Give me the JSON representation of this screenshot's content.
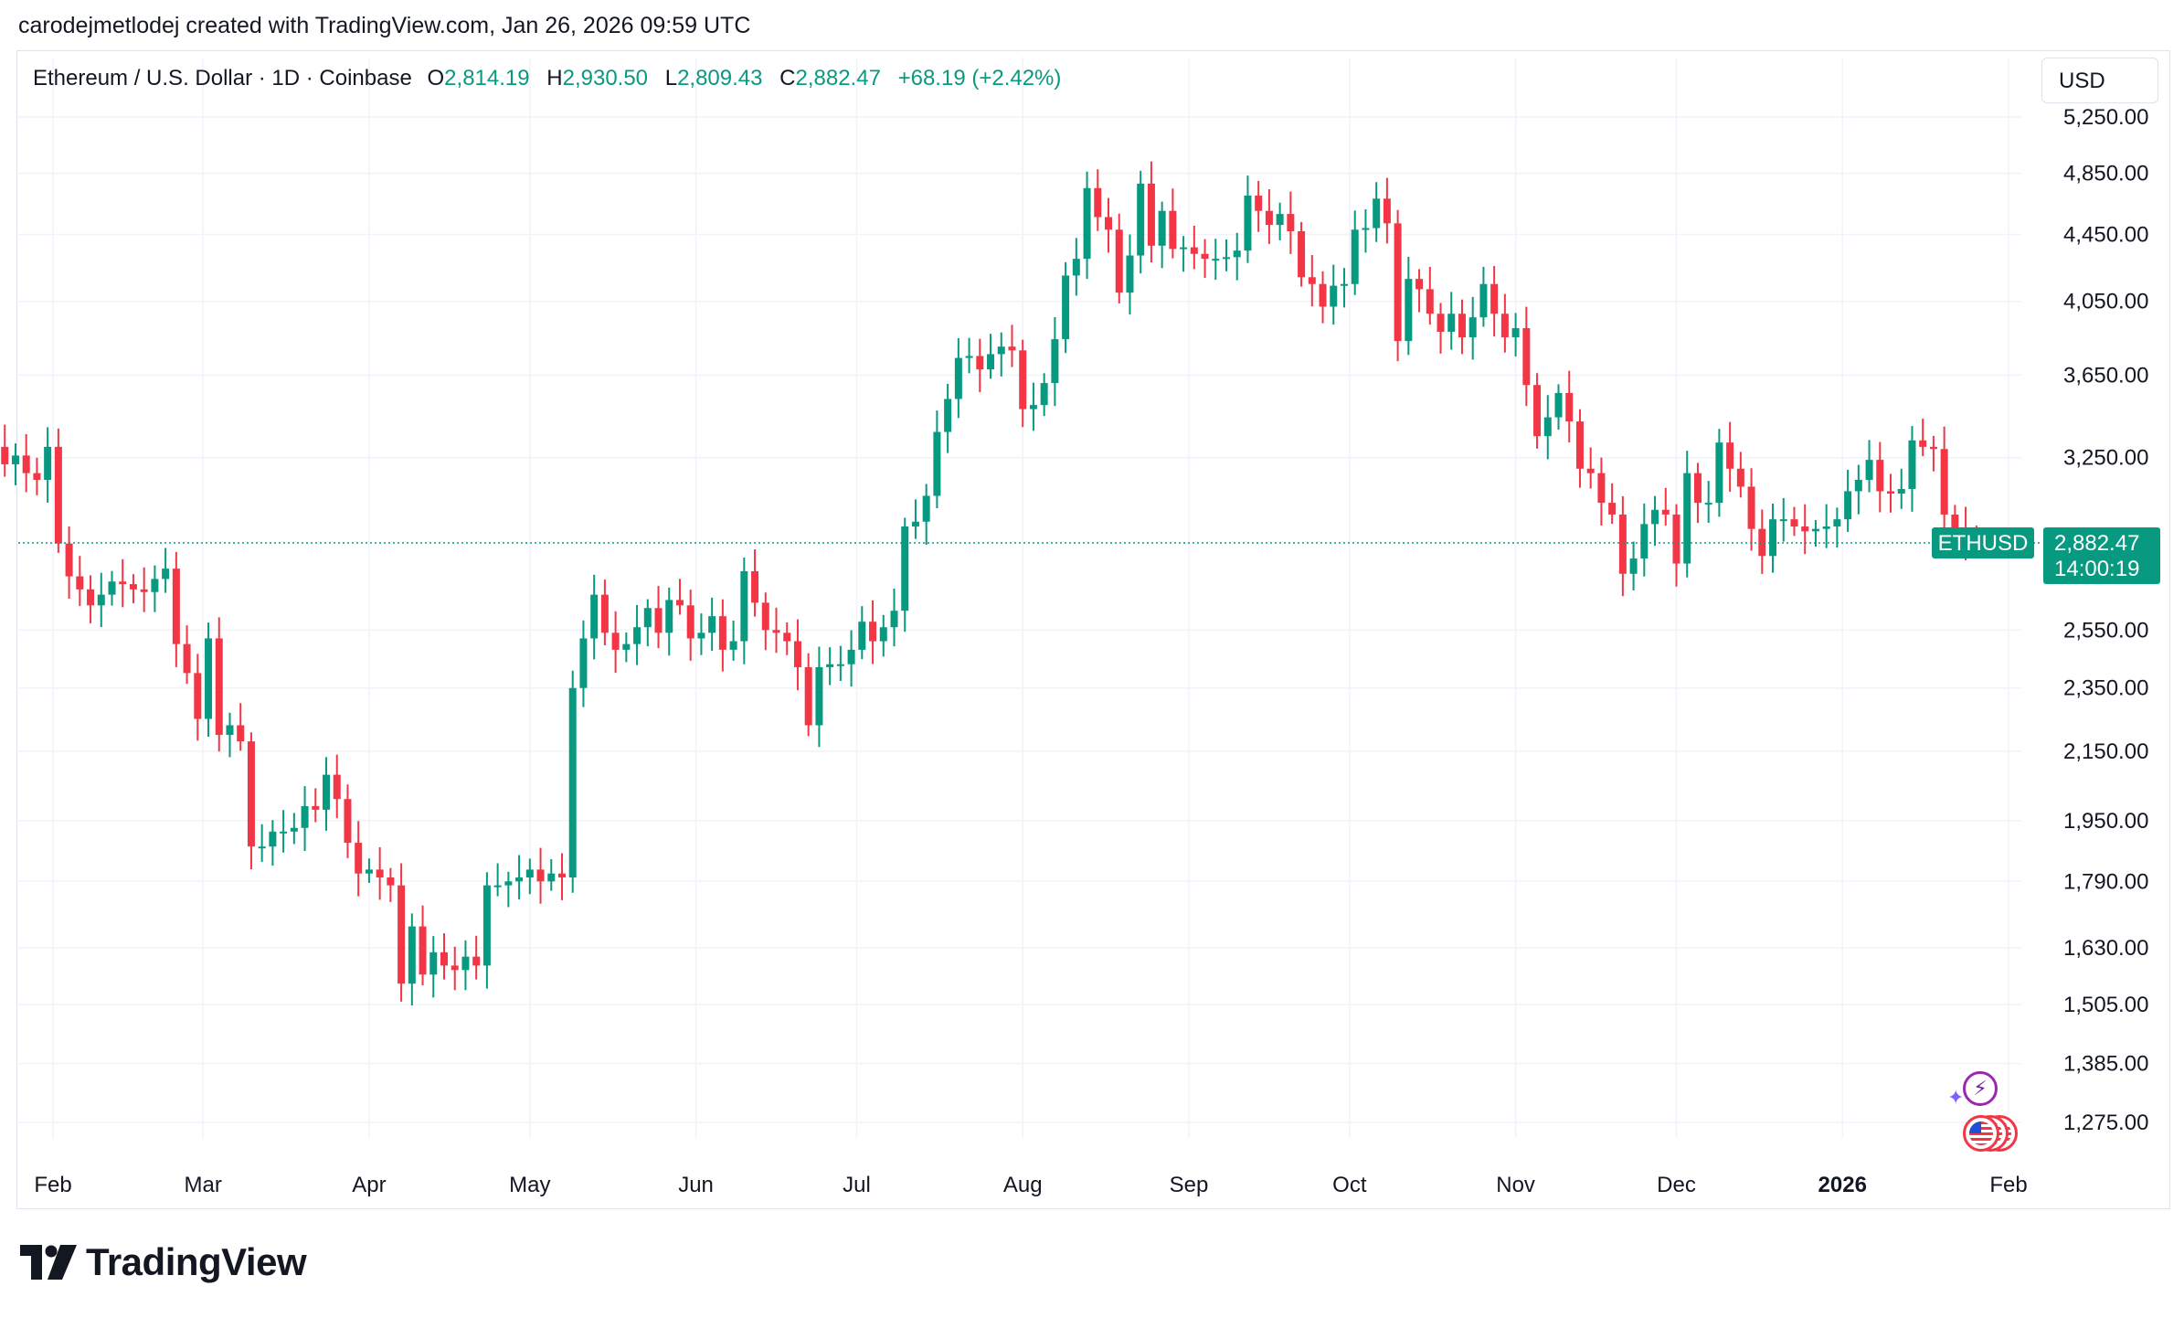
{
  "attribution": "carodejmetlodej created with TradingView.com, Jan 26, 2026 09:59 UTC",
  "legend": {
    "symbol": "Ethereum / U.S. Dollar · 1D · Coinbase",
    "open_label": "O",
    "open": "2,814.19",
    "high_label": "H",
    "high": "2,930.50",
    "low_label": "L",
    "low": "2,809.43",
    "close_label": "C",
    "close": "2,882.47",
    "change": "+68.19 (+2.42%)"
  },
  "currency": "USD",
  "price_tag": {
    "ticker": "ETHUSD",
    "price": "2,882.47",
    "countdown": "14:00:19"
  },
  "brand": "TradingView",
  "icons": [
    "tradingview-logo-icon",
    "bolt-icon",
    "us-flag-icon"
  ],
  "colors": {
    "up": "#089981",
    "down": "#f23645",
    "grid": "#f0f3fa",
    "text": "#131722"
  },
  "chart_data": {
    "type": "candlestick",
    "symbol": "ETHUSD",
    "interval": "1D",
    "y_scale": "log",
    "y_ticks": [
      1275,
      1385,
      1505,
      1630,
      1790,
      1950,
      2150,
      2350,
      2550,
      3250,
      3650,
      4050,
      4450,
      4850,
      5250
    ],
    "y_tick_labels": [
      "1,275.00",
      "1,385.00",
      "1,505.00",
      "1,630.00",
      "1,790.00",
      "1,950.00",
      "2,150.00",
      "2,350.00",
      "2,550.00",
      "3,250.00",
      "3,650.00",
      "4,050.00",
      "4,450.00",
      "4,850.00",
      "5,250.00"
    ],
    "x_tick_labels": [
      "Feb",
      "Mar",
      "Apr",
      "May",
      "Jun",
      "Jul",
      "Aug",
      "Sep",
      "Oct",
      "Nov",
      "Dec",
      "2026",
      "Feb"
    ],
    "x_tick_dates": [
      "2025-02-01",
      "2025-03-01",
      "2025-04-01",
      "2025-05-01",
      "2025-06-01",
      "2025-07-01",
      "2025-08-01",
      "2025-09-01",
      "2025-10-01",
      "2025-11-01",
      "2025-12-01",
      "2026-01-01",
      "2026-02-01"
    ],
    "last_price": 2882.47,
    "grid": true,
    "candles_approx_close": [
      [
        "2025-01-21",
        3300
      ],
      [
        "2025-01-23",
        3220
      ],
      [
        "2025-01-25",
        3260
      ],
      [
        "2025-01-27",
        3180
      ],
      [
        "2025-01-29",
        3150
      ],
      [
        "2025-01-31",
        3300
      ],
      [
        "2025-02-02",
        2880
      ],
      [
        "2025-02-04",
        2750
      ],
      [
        "2025-02-06",
        2700
      ],
      [
        "2025-02-08",
        2640
      ],
      [
        "2025-02-10",
        2680
      ],
      [
        "2025-02-12",
        2730
      ],
      [
        "2025-02-14",
        2720
      ],
      [
        "2025-02-16",
        2700
      ],
      [
        "2025-02-18",
        2690
      ],
      [
        "2025-02-20",
        2740
      ],
      [
        "2025-02-22",
        2780
      ],
      [
        "2025-02-24",
        2500
      ],
      [
        "2025-02-26",
        2400
      ],
      [
        "2025-02-28",
        2250
      ],
      [
        "2025-03-02",
        2520
      ],
      [
        "2025-03-04",
        2200
      ],
      [
        "2025-03-06",
        2230
      ],
      [
        "2025-03-08",
        2180
      ],
      [
        "2025-03-10",
        1880
      ],
      [
        "2025-03-12",
        1880
      ],
      [
        "2025-03-14",
        1920
      ],
      [
        "2025-03-16",
        1920
      ],
      [
        "2025-03-18",
        1930
      ],
      [
        "2025-03-20",
        1990
      ],
      [
        "2025-03-22",
        1980
      ],
      [
        "2025-03-24",
        2080
      ],
      [
        "2025-03-26",
        2010
      ],
      [
        "2025-03-28",
        1890
      ],
      [
        "2025-03-30",
        1810
      ],
      [
        "2025-04-01",
        1820
      ],
      [
        "2025-04-03",
        1800
      ],
      [
        "2025-04-05",
        1780
      ],
      [
        "2025-04-07",
        1550
      ],
      [
        "2025-04-09",
        1680
      ],
      [
        "2025-04-11",
        1570
      ],
      [
        "2025-04-13",
        1620
      ],
      [
        "2025-04-15",
        1590
      ],
      [
        "2025-04-17",
        1580
      ],
      [
        "2025-04-19",
        1610
      ],
      [
        "2025-04-21",
        1590
      ],
      [
        "2025-04-23",
        1780
      ],
      [
        "2025-04-25",
        1780
      ],
      [
        "2025-04-27",
        1790
      ],
      [
        "2025-04-29",
        1800
      ],
      [
        "2025-05-01",
        1820
      ],
      [
        "2025-05-03",
        1790
      ],
      [
        "2025-05-05",
        1810
      ],
      [
        "2025-05-07",
        1800
      ],
      [
        "2025-05-09",
        2350
      ],
      [
        "2025-05-11",
        2520
      ],
      [
        "2025-05-13",
        2680
      ],
      [
        "2025-05-15",
        2540
      ],
      [
        "2025-05-17",
        2480
      ],
      [
        "2025-05-19",
        2500
      ],
      [
        "2025-05-21",
        2560
      ],
      [
        "2025-05-23",
        2630
      ],
      [
        "2025-05-25",
        2540
      ],
      [
        "2025-05-27",
        2660
      ],
      [
        "2025-05-29",
        2640
      ],
      [
        "2025-05-31",
        2520
      ],
      [
        "2025-06-02",
        2540
      ],
      [
        "2025-06-04",
        2600
      ],
      [
        "2025-06-06",
        2480
      ],
      [
        "2025-06-08",
        2510
      ],
      [
        "2025-06-10",
        2770
      ],
      [
        "2025-06-12",
        2650
      ],
      [
        "2025-06-14",
        2550
      ],
      [
        "2025-06-16",
        2540
      ],
      [
        "2025-06-18",
        2510
      ],
      [
        "2025-06-20",
        2420
      ],
      [
        "2025-06-22",
        2230
      ],
      [
        "2025-06-24",
        2420
      ],
      [
        "2025-06-26",
        2430
      ],
      [
        "2025-06-28",
        2430
      ],
      [
        "2025-06-30",
        2480
      ],
      [
        "2025-07-02",
        2580
      ],
      [
        "2025-07-04",
        2510
      ],
      [
        "2025-07-06",
        2560
      ],
      [
        "2025-07-08",
        2620
      ],
      [
        "2025-07-10",
        2950
      ],
      [
        "2025-07-12",
        2970
      ],
      [
        "2025-07-14",
        3080
      ],
      [
        "2025-07-16",
        3370
      ],
      [
        "2025-07-18",
        3530
      ],
      [
        "2025-07-20",
        3740
      ],
      [
        "2025-07-22",
        3750
      ],
      [
        "2025-07-24",
        3680
      ],
      [
        "2025-07-26",
        3760
      ],
      [
        "2025-07-28",
        3800
      ],
      [
        "2025-07-30",
        3780
      ],
      [
        "2025-08-01",
        3480
      ],
      [
        "2025-08-03",
        3500
      ],
      [
        "2025-08-05",
        3610
      ],
      [
        "2025-08-07",
        3840
      ],
      [
        "2025-08-09",
        4200
      ],
      [
        "2025-08-11",
        4300
      ],
      [
        "2025-08-13",
        4750
      ],
      [
        "2025-08-15",
        4560
      ],
      [
        "2025-08-17",
        4480
      ],
      [
        "2025-08-19",
        4100
      ],
      [
        "2025-08-21",
        4320
      ],
      [
        "2025-08-23",
        4780
      ],
      [
        "2025-08-25",
        4380
      ],
      [
        "2025-08-27",
        4600
      ],
      [
        "2025-08-29",
        4360
      ],
      [
        "2025-08-31",
        4370
      ],
      [
        "2025-09-02",
        4330
      ],
      [
        "2025-09-04",
        4300
      ],
      [
        "2025-09-06",
        4300
      ],
      [
        "2025-09-08",
        4310
      ],
      [
        "2025-09-10",
        4350
      ],
      [
        "2025-09-12",
        4700
      ],
      [
        "2025-09-14",
        4600
      ],
      [
        "2025-09-16",
        4510
      ],
      [
        "2025-09-18",
        4580
      ],
      [
        "2025-09-20",
        4470
      ],
      [
        "2025-09-22",
        4190
      ],
      [
        "2025-09-24",
        4150
      ],
      [
        "2025-09-26",
        4020
      ],
      [
        "2025-09-28",
        4140
      ],
      [
        "2025-09-30",
        4150
      ],
      [
        "2025-10-02",
        4480
      ],
      [
        "2025-10-04",
        4490
      ],
      [
        "2025-10-06",
        4680
      ],
      [
        "2025-10-08",
        4520
      ],
      [
        "2025-10-10",
        3830
      ],
      [
        "2025-10-12",
        4180
      ],
      [
        "2025-10-14",
        4120
      ],
      [
        "2025-10-16",
        3980
      ],
      [
        "2025-10-18",
        3880
      ],
      [
        "2025-10-20",
        3980
      ],
      [
        "2025-10-22",
        3850
      ],
      [
        "2025-10-24",
        3960
      ],
      [
        "2025-10-26",
        4150
      ],
      [
        "2025-10-28",
        3980
      ],
      [
        "2025-10-30",
        3850
      ],
      [
        "2025-11-01",
        3900
      ],
      [
        "2025-11-03",
        3600
      ],
      [
        "2025-11-05",
        3350
      ],
      [
        "2025-11-07",
        3440
      ],
      [
        "2025-11-09",
        3560
      ],
      [
        "2025-11-11",
        3420
      ],
      [
        "2025-11-13",
        3200
      ],
      [
        "2025-11-15",
        3180
      ],
      [
        "2025-11-17",
        3050
      ],
      [
        "2025-11-19",
        3000
      ],
      [
        "2025-11-21",
        2760
      ],
      [
        "2025-11-23",
        2820
      ],
      [
        "2025-11-25",
        2960
      ],
      [
        "2025-11-27",
        3020
      ],
      [
        "2025-11-29",
        3000
      ],
      [
        "2025-12-01",
        2800
      ],
      [
        "2025-12-03",
        3180
      ],
      [
        "2025-12-05",
        3050
      ],
      [
        "2025-12-07",
        3050
      ],
      [
        "2025-12-09",
        3320
      ],
      [
        "2025-12-11",
        3200
      ],
      [
        "2025-12-13",
        3120
      ],
      [
        "2025-12-15",
        2940
      ],
      [
        "2025-12-17",
        2830
      ],
      [
        "2025-12-19",
        2980
      ],
      [
        "2025-12-21",
        2980
      ],
      [
        "2025-12-23",
        2950
      ],
      [
        "2025-12-25",
        2930
      ],
      [
        "2025-12-27",
        2940
      ],
      [
        "2025-12-29",
        2950
      ],
      [
        "2025-12-31",
        2980
      ],
      [
        "2026-01-02",
        3100
      ],
      [
        "2026-01-04",
        3150
      ],
      [
        "2026-01-06",
        3240
      ],
      [
        "2026-01-08",
        3100
      ],
      [
        "2026-01-10",
        3090
      ],
      [
        "2026-01-12",
        3110
      ],
      [
        "2026-01-14",
        3330
      ],
      [
        "2026-01-16",
        3300
      ],
      [
        "2026-01-18",
        3290
      ],
      [
        "2026-01-20",
        3000
      ],
      [
        "2026-01-22",
        2940
      ],
      [
        "2026-01-24",
        2900
      ],
      [
        "2026-01-26",
        2882.47
      ]
    ]
  }
}
